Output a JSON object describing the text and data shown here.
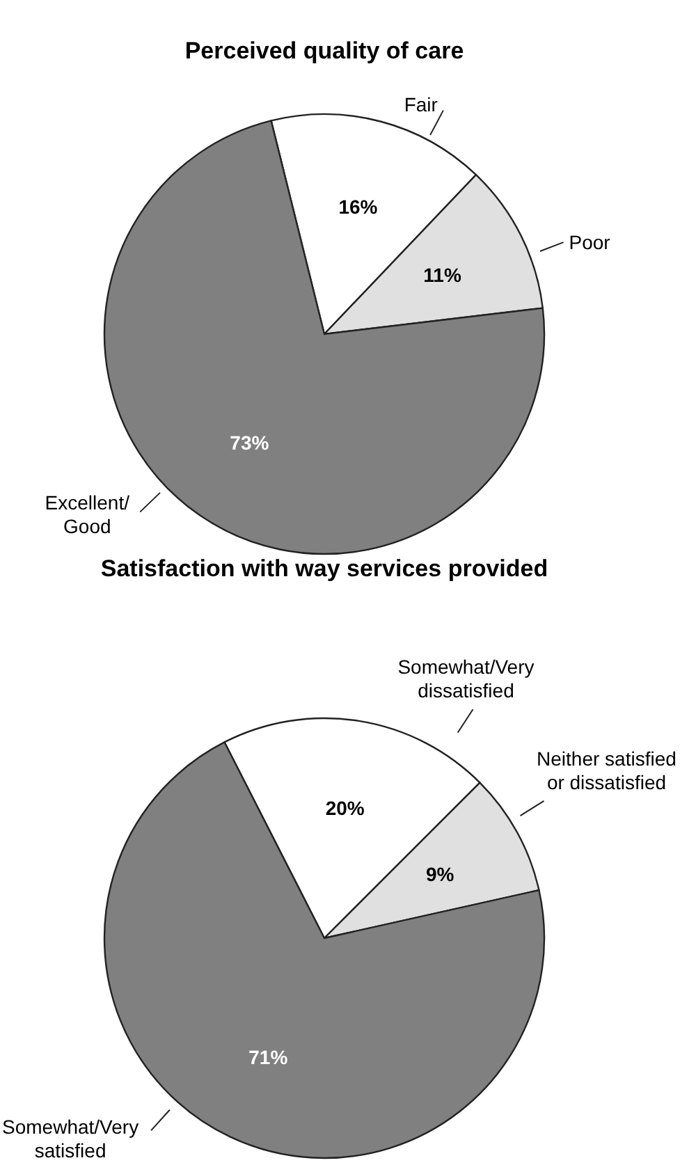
{
  "chart_data": [
    {
      "type": "pie",
      "title": "Perceived quality of care",
      "categories": [
        "Fair",
        "Poor",
        "Excellent/\nGood"
      ],
      "values": [
        16,
        11,
        73
      ],
      "colors": [
        "#ffffff",
        "#e0e0e0",
        "#808080"
      ],
      "value_labels": [
        "16%",
        "11%",
        "73%"
      ]
    },
    {
      "type": "pie",
      "title": "Satisfaction with way services provided",
      "categories": [
        "Somewhat/Very\ndissatisfied",
        "Neither satisfied\nor dissatisfied",
        "Somewhat/Very\nsatisfied"
      ],
      "values": [
        20,
        9,
        71
      ],
      "colors": [
        "#ffffff",
        "#e0e0e0",
        "#808080"
      ],
      "value_labels": [
        "20%",
        "9%",
        "71%"
      ]
    }
  ]
}
